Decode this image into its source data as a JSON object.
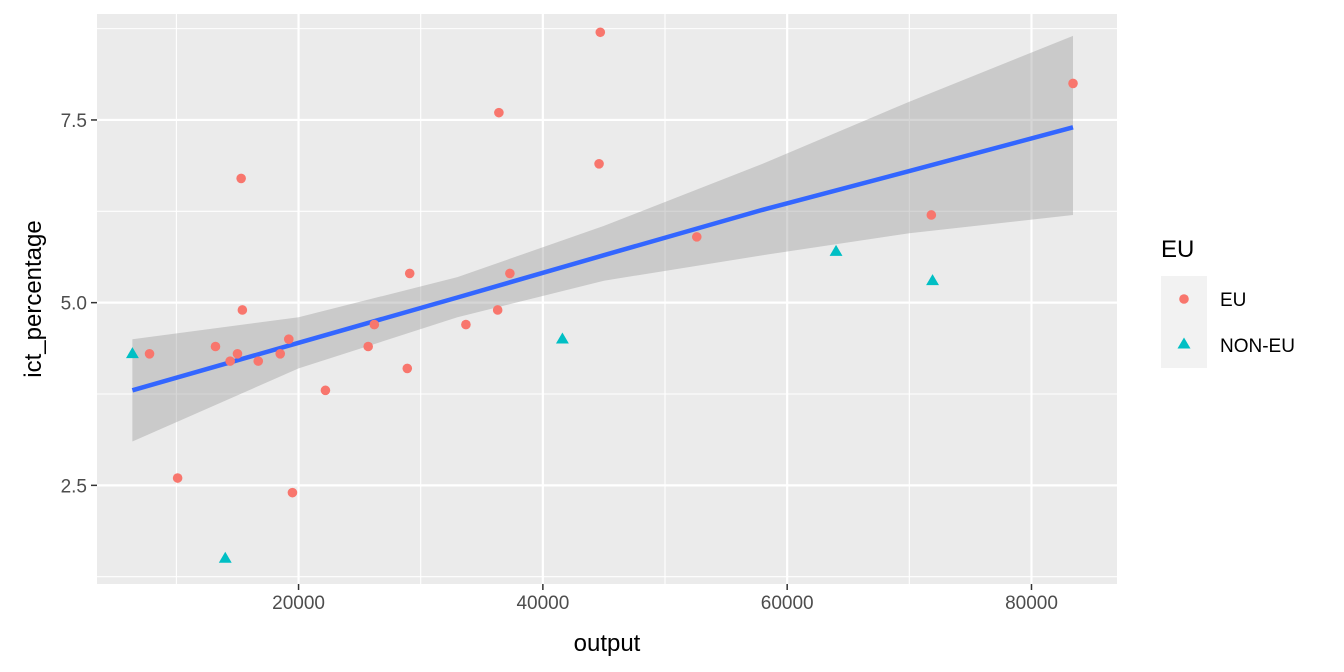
{
  "chart_data": {
    "type": "scatter",
    "xlabel": "output",
    "ylabel": "ict_percentage",
    "xlim": [
      3500,
      87000
    ],
    "ylim": [
      1.15,
      8.95
    ],
    "x_ticks": [
      20000,
      40000,
      60000,
      80000
    ],
    "x_tick_labels": [
      "20000",
      "40000",
      "60000",
      "80000"
    ],
    "y_ticks": [
      2.5,
      5.0,
      7.5
    ],
    "y_tick_labels": [
      "2.5",
      "5.0",
      "7.5"
    ],
    "grid": true,
    "legend": {
      "title": "EU",
      "position": "right"
    },
    "series": [
      {
        "name": "EU",
        "marker": "circle",
        "color": "#F8766D",
        "points": [
          [
            7800,
            4.3
          ],
          [
            10100,
            2.6
          ],
          [
            13200,
            4.4
          ],
          [
            14400,
            4.2
          ],
          [
            15000,
            4.3
          ],
          [
            15300,
            6.7
          ],
          [
            15400,
            4.9
          ],
          [
            16700,
            4.2
          ],
          [
            18500,
            4.3
          ],
          [
            19200,
            4.5
          ],
          [
            19500,
            2.4
          ],
          [
            22200,
            3.8
          ],
          [
            25700,
            4.4
          ],
          [
            26200,
            4.7
          ],
          [
            28900,
            4.1
          ],
          [
            29100,
            5.4
          ],
          [
            33700,
            4.7
          ],
          [
            36300,
            4.9
          ],
          [
            36400,
            7.6
          ],
          [
            37300,
            5.4
          ],
          [
            44600,
            6.9
          ],
          [
            44700,
            8.7
          ],
          [
            52600,
            5.9
          ],
          [
            71800,
            6.2
          ],
          [
            83400,
            8.0
          ]
        ]
      },
      {
        "name": "NON-EU",
        "marker": "triangle",
        "color": "#00BFC4",
        "points": [
          [
            6400,
            4.3
          ],
          [
            14000,
            1.5
          ],
          [
            41600,
            4.5
          ],
          [
            64000,
            5.7
          ],
          [
            71900,
            5.3
          ]
        ]
      }
    ],
    "fit": {
      "method": "linear",
      "color": "#3366FF",
      "band_color": "#999999",
      "points": [
        {
          "x": 6400,
          "y": 3.8,
          "lo": 3.1,
          "hi": 4.5
        },
        {
          "x": 20000,
          "y": 4.45,
          "lo": 4.1,
          "hi": 4.8
        },
        {
          "x": 33000,
          "y": 5.07,
          "lo": 4.8,
          "hi": 5.35
        },
        {
          "x": 45000,
          "y": 5.65,
          "lo": 5.3,
          "hi": 6.05
        },
        {
          "x": 58000,
          "y": 6.27,
          "lo": 5.65,
          "hi": 6.9
        },
        {
          "x": 70000,
          "y": 6.8,
          "lo": 5.95,
          "hi": 7.75
        },
        {
          "x": 83400,
          "y": 7.4,
          "lo": 6.2,
          "hi": 8.65
        }
      ]
    }
  },
  "colors": {
    "panel_background": "#EBEBEB",
    "grid_major": "#FFFFFF",
    "legend_key_background": "#F2F2F2"
  }
}
